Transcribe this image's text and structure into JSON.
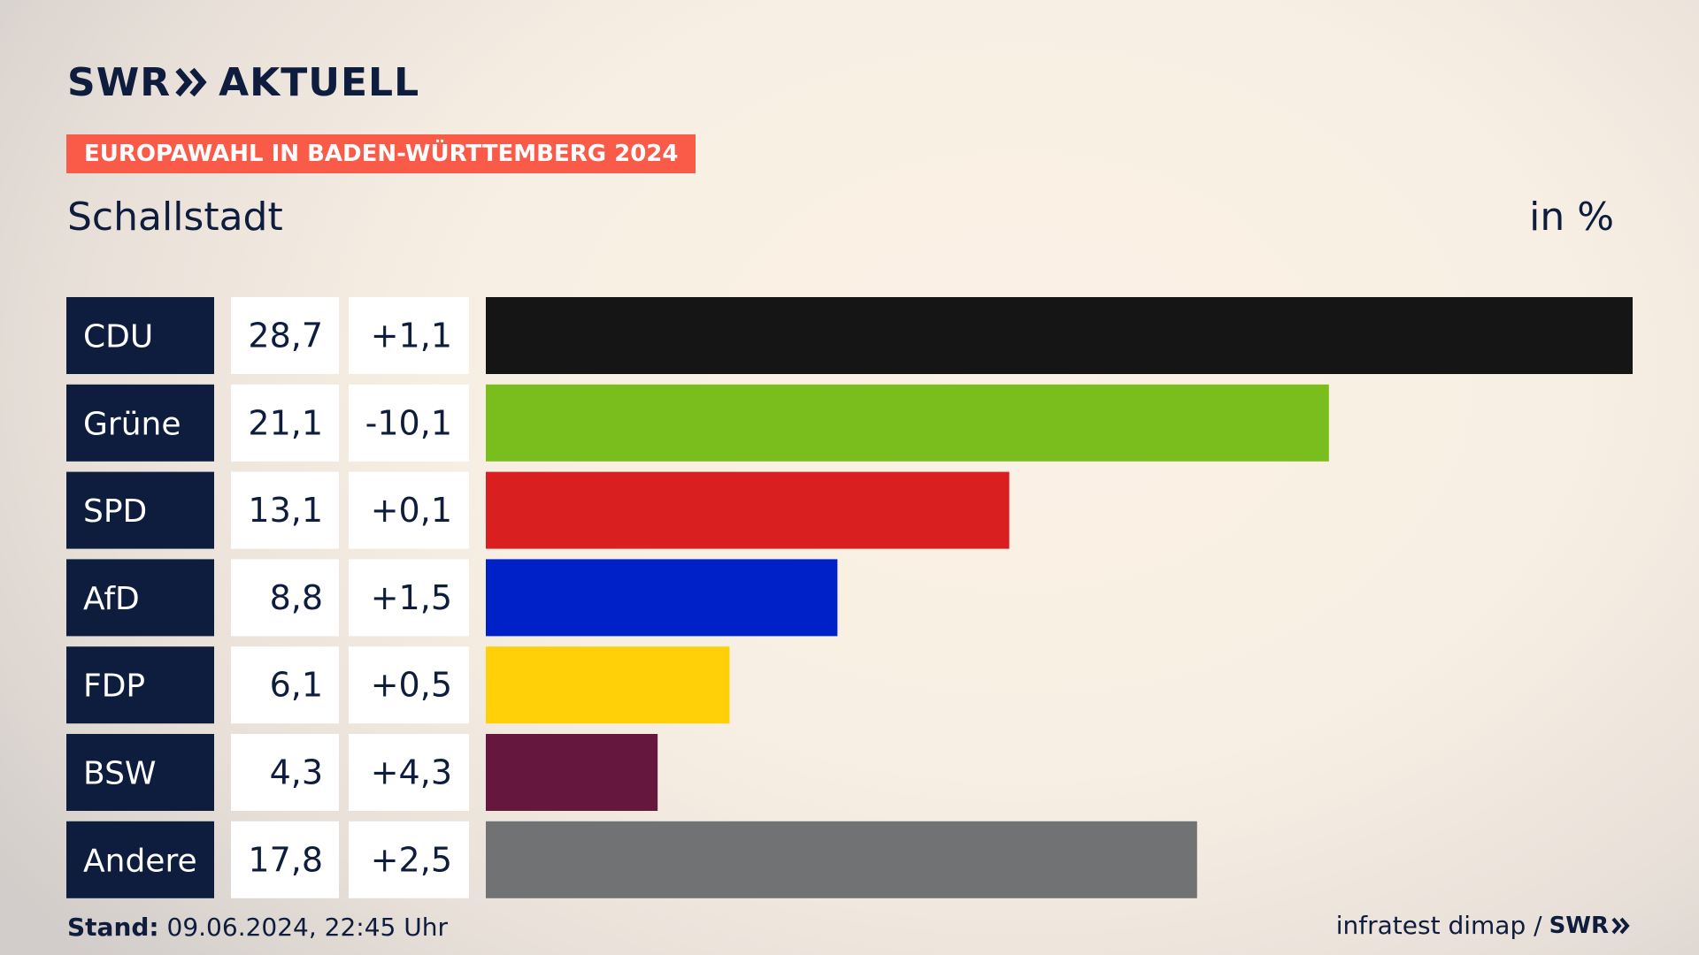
{
  "header": {
    "logo_swr": "SWR",
    "logo_aktuell": "AKTUELL",
    "badge": "EUROPAWAHL IN BADEN-WÜRTTEMBERG 2024",
    "subtitle": "Schallstadt",
    "unit": "in %"
  },
  "footer": {
    "stand_label": "Stand:",
    "stand_value": "09.06.2024, 22:45 Uhr",
    "source": "infratest dimap /",
    "source_logo": "SWR"
  },
  "colors": {
    "label_bg": "#0e1c3e",
    "value_bg": "#ffffff",
    "text_dark": "#0e1c3e"
  },
  "chart_data": {
    "type": "bar",
    "orientation": "horizontal",
    "categories": [
      "CDU",
      "Grüne",
      "SPD",
      "AfD",
      "FDP",
      "BSW",
      "Andere"
    ],
    "series": [
      {
        "values": [
          28.7,
          21.1,
          13.1,
          8.8,
          6.1,
          4.3,
          17.8
        ]
      }
    ],
    "value_labels": [
      "28,7",
      "21,1",
      "13,1",
      "8,8",
      "6,1",
      "4,3",
      "17,8"
    ],
    "change_labels": [
      "+1,1",
      "-10,1",
      "+0,1",
      "+1,5",
      "+0,5",
      "+4,3",
      "+2,5"
    ],
    "changes": [
      1.1,
      -10.1,
      0.1,
      1.5,
      0.5,
      4.3,
      2.5
    ],
    "bar_colors": [
      "#151515",
      "#7abe1e",
      "#d91f1f",
      "#0021c8",
      "#ffcf08",
      "#66173e",
      "#717274"
    ],
    "xlim": [
      0,
      28.7
    ],
    "grid": false,
    "legend": "none"
  }
}
